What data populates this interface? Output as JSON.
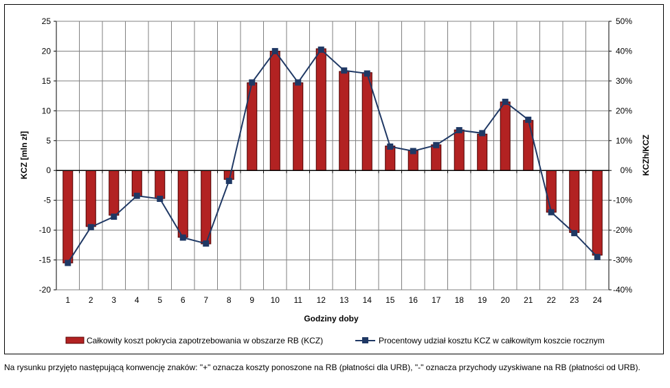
{
  "chart_data": {
    "type": "bar+line",
    "categories": [
      "1",
      "2",
      "3",
      "4",
      "5",
      "6",
      "7",
      "8",
      "9",
      "10",
      "11",
      "12",
      "13",
      "14",
      "15",
      "16",
      "17",
      "18",
      "19",
      "20",
      "21",
      "22",
      "23",
      "24"
    ],
    "series": [
      {
        "name": "Całkowity koszt pokrycia zapotrzebowania w obszarze RB (KCZ)",
        "type": "bar",
        "axis": "left",
        "color": "#b22222",
        "values": [
          -15.5,
          -9.4,
          -7.5,
          -4.3,
          -4.7,
          -11.2,
          -12.3,
          -1.5,
          14.7,
          20.0,
          14.7,
          20.4,
          16.6,
          16.4,
          4.1,
          3.3,
          4.3,
          6.8,
          6.1,
          11.5,
          8.4,
          -7.0,
          -10.4,
          -14.2
        ]
      },
      {
        "name": "Procentowy udział kosztu KCZ w całkowitym koszcie rocznym",
        "type": "line",
        "axis": "right",
        "color": "#1f3864",
        "values": [
          -31,
          -19,
          -15.5,
          -8.5,
          -9.5,
          -22.5,
          -24.5,
          -3.5,
          29.5,
          40,
          29.5,
          40.5,
          33.5,
          32.5,
          8,
          6.5,
          8.5,
          13.5,
          12.5,
          23,
          17,
          -14,
          -21,
          -29
        ]
      }
    ],
    "left_ticks": [
      "25",
      "20",
      "15",
      "10",
      "5",
      "0",
      "-5",
      "-10",
      "-15",
      "-20"
    ],
    "right_ticks": [
      "50%",
      "40%",
      "30%",
      "20%",
      "10%",
      "0%",
      "-10%",
      "-20%",
      "-30%",
      "-40%"
    ],
    "ylim_left": [
      -20,
      25
    ],
    "ylim_right": [
      -40,
      50
    ],
    "xlabel": "Godziny doby",
    "ylabel_left": "KCZ [mln zł]",
    "ylabel_right": "KCZh/KCZ",
    "grid": true,
    "legend_position": "bottom"
  },
  "caption": "Na rysunku przyjęto następującą konwencję znaków: \"+\" oznacza koszty ponoszone na RB (płatności dla URB), \"-\" oznacza przychody uzyskiwane na RB (płatności od URB)."
}
